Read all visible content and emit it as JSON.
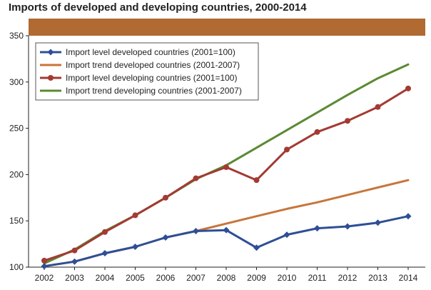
{
  "chart_data": {
    "type": "line",
    "title": "Imports of developed and developing countries, 2000-2014",
    "xlabel": "",
    "ylabel": "",
    "x": [
      2002,
      2003,
      2004,
      2005,
      2006,
      2007,
      2008,
      2009,
      2010,
      2011,
      2012,
      2013,
      2014
    ],
    "ylim": [
      100,
      350
    ],
    "yticks": [
      100,
      150,
      200,
      250,
      300,
      350
    ],
    "legend_position": "top-left",
    "series": [
      {
        "name": "Import level developed countries (2001=100)",
        "color": "#2e4f96",
        "marker": "diamond",
        "values": [
          101,
          106,
          115,
          122,
          132,
          139,
          140,
          121,
          135,
          142,
          144,
          148,
          155
        ]
      },
      {
        "name": "Import trend developed countries (2001-2007)",
        "color": "#c8753a",
        "marker": "none",
        "values": [
          101,
          106,
          115,
          122,
          132,
          139,
          147,
          155,
          163,
          170,
          178,
          186,
          194
        ]
      },
      {
        "name": "Import level developing countries (2001=100)",
        "color": "#a33a33",
        "marker": "circle",
        "values": [
          107,
          118,
          138,
          156,
          175,
          196,
          208,
          194,
          227,
          246,
          258,
          273,
          293
        ]
      },
      {
        "name": "Import trend developing countries (2001-2007)",
        "color": "#5a8a32",
        "marker": "none",
        "values": [
          104,
          119,
          139,
          156,
          175,
          195,
          210,
          229,
          248,
          267,
          286,
          304,
          319
        ]
      }
    ],
    "band_color": "#b06a32",
    "axis_color": "#222222"
  }
}
